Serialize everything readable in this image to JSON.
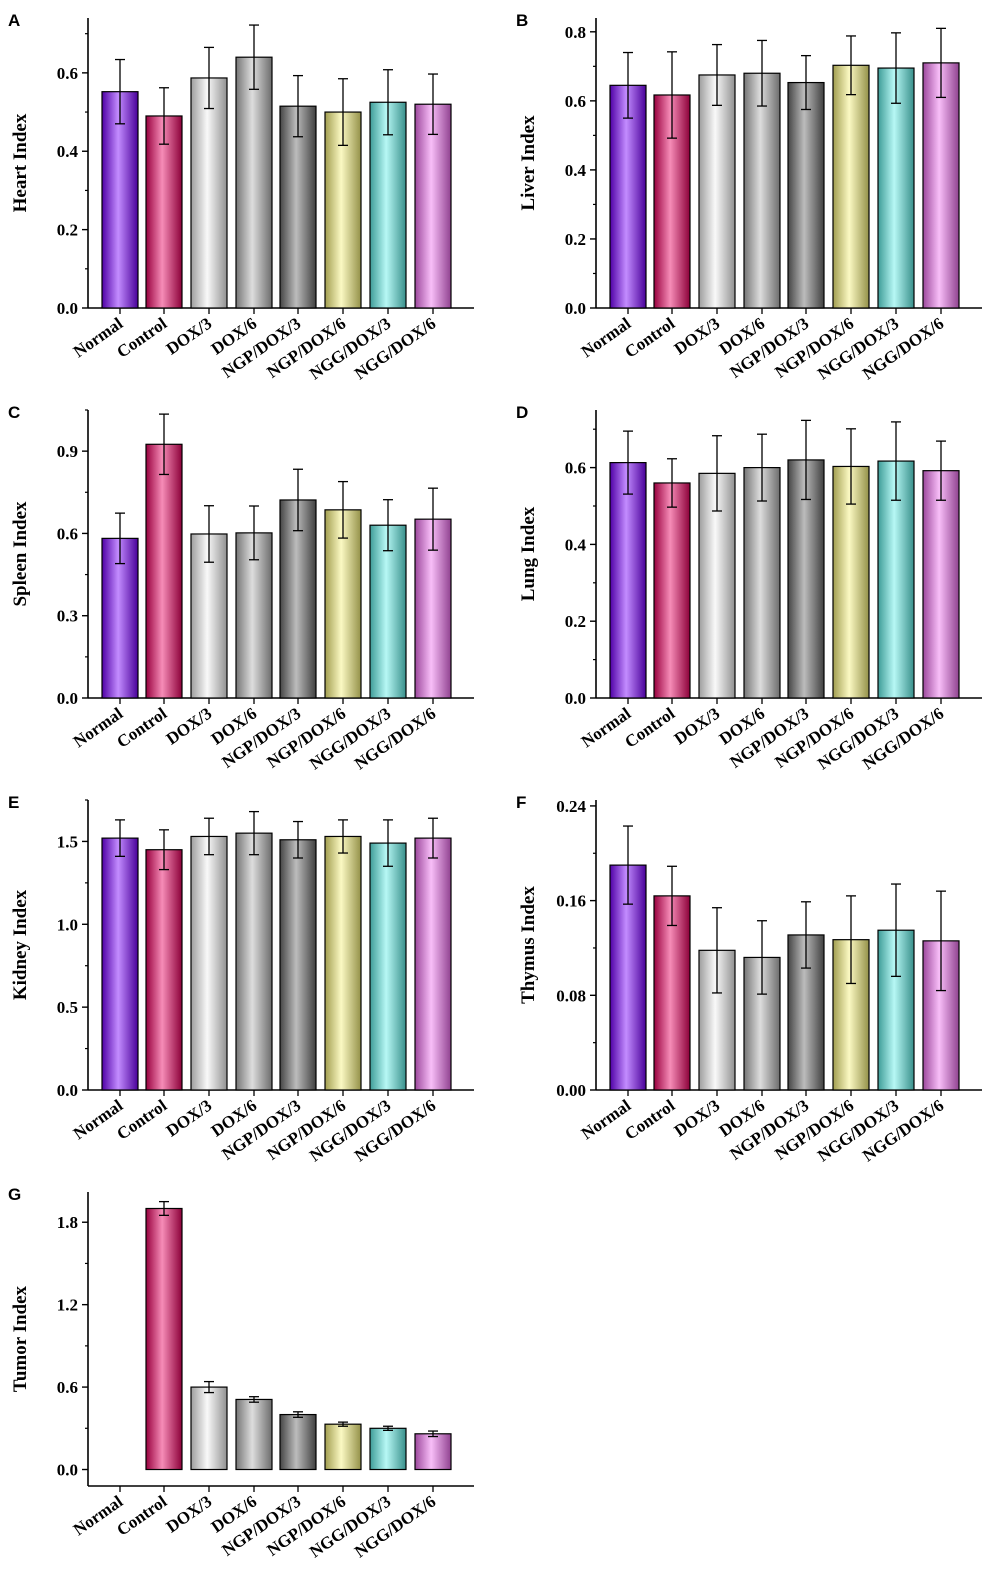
{
  "colors": {
    "Normal": "#7a00ff",
    "Control": "#ea005f",
    "DOX/3": "#f2f2f2",
    "DOX/6": "#b4b4b4",
    "NGP/DOX/3": "#6a6a6a",
    "NGP/DOX/6": "#f7f27a",
    "NGG/DOX/3": "#5ff0e8",
    "NGG/DOX/6": "#f06ef0"
  },
  "chart_data": [
    {
      "type": "bar",
      "panel": "A",
      "ylabel": "Heart Index",
      "categories": [
        "Normal",
        "Control",
        "DOX/3",
        "DOX/6",
        "NGP/DOX/3",
        "NGP/DOX/6",
        "NGG/DOX/3",
        "NGG/DOX/6"
      ],
      "values": [
        0.552,
        0.49,
        0.587,
        0.64,
        0.515,
        0.5,
        0.525,
        0.52
      ],
      "errors": [
        0.082,
        0.072,
        0.078,
        0.082,
        0.078,
        0.085,
        0.083,
        0.077
      ],
      "ylim": [
        0,
        0.74
      ],
      "yticks": [
        0.0,
        0.2,
        0.4,
        0.6
      ],
      "ytick_labels": [
        "0.0",
        "0.2",
        "0.4",
        "0.6"
      ]
    },
    {
      "type": "bar",
      "panel": "B",
      "ylabel": "Liver Index",
      "categories": [
        "Normal",
        "Control",
        "DOX/3",
        "DOX/6",
        "NGP/DOX/3",
        "NGP/DOX/6",
        "NGG/DOX/3",
        "NGG/DOX/6"
      ],
      "values": [
        0.645,
        0.617,
        0.675,
        0.68,
        0.653,
        0.703,
        0.695,
        0.71
      ],
      "errors": [
        0.095,
        0.125,
        0.088,
        0.095,
        0.078,
        0.085,
        0.102,
        0.1
      ],
      "ylim": [
        0,
        0.84
      ],
      "yticks": [
        0.0,
        0.2,
        0.4,
        0.6,
        0.8
      ],
      "ytick_labels": [
        "0.0",
        "0.2",
        "0.4",
        "0.6",
        "0.8"
      ]
    },
    {
      "type": "bar",
      "panel": "C",
      "ylabel": "Spleen Index",
      "categories": [
        "Normal",
        "Control",
        "DOX/3",
        "DOX/6",
        "NGP/DOX/3",
        "NGP/DOX/6",
        "NGG/DOX/3",
        "NGG/DOX/6"
      ],
      "values": [
        0.582,
        0.925,
        0.598,
        0.602,
        0.722,
        0.686,
        0.63,
        0.652
      ],
      "errors": [
        0.092,
        0.11,
        0.103,
        0.098,
        0.112,
        0.103,
        0.093,
        0.113
      ],
      "ylim": [
        0,
        1.05
      ],
      "yticks": [
        0.0,
        0.3,
        0.6,
        0.9
      ],
      "ytick_labels": [
        "0.0",
        "0.3",
        "0.6",
        "0.9"
      ]
    },
    {
      "type": "bar",
      "panel": "D",
      "ylabel": "Lung Index",
      "categories": [
        "Normal",
        "Control",
        "DOX/3",
        "DOX/6",
        "NGP/DOX/3",
        "NGP/DOX/6",
        "NGG/DOX/3",
        "NGG/DOX/6"
      ],
      "values": [
        0.613,
        0.56,
        0.585,
        0.6,
        0.62,
        0.603,
        0.617,
        0.592
      ],
      "errors": [
        0.082,
        0.063,
        0.098,
        0.087,
        0.103,
        0.098,
        0.102,
        0.077
      ],
      "ylim": [
        0,
        0.75
      ],
      "yticks": [
        0.0,
        0.2,
        0.4,
        0.6
      ],
      "ytick_labels": [
        "0.0",
        "0.2",
        "0.4",
        "0.6"
      ]
    },
    {
      "type": "bar",
      "panel": "E",
      "ylabel": "Kidney Index",
      "categories": [
        "Normal",
        "Control",
        "DOX/3",
        "DOX/6",
        "NGP/DOX/3",
        "NGP/DOX/6",
        "NGG/DOX/3",
        "NGG/DOX/6"
      ],
      "values": [
        1.52,
        1.45,
        1.53,
        1.55,
        1.51,
        1.53,
        1.49,
        1.52
      ],
      "errors": [
        0.11,
        0.12,
        0.11,
        0.13,
        0.11,
        0.1,
        0.14,
        0.12
      ],
      "ylim": [
        0,
        1.75
      ],
      "yticks": [
        0.0,
        0.5,
        1.0,
        1.5
      ],
      "ytick_labels": [
        "0.0",
        "0.5",
        "1.0",
        "1.5"
      ]
    },
    {
      "type": "bar",
      "panel": "F",
      "ylabel": "Thymus Index",
      "categories": [
        "Normal",
        "Control",
        "DOX/3",
        "DOX/6",
        "NGP/DOX/3",
        "NGP/DOX/6",
        "NGG/DOX/3",
        "NGG/DOX/6"
      ],
      "values": [
        0.19,
        0.164,
        0.118,
        0.112,
        0.131,
        0.127,
        0.135,
        0.126
      ],
      "errors": [
        0.033,
        0.025,
        0.036,
        0.031,
        0.028,
        0.037,
        0.039,
        0.042
      ],
      "ylim": [
        0,
        0.245
      ],
      "yticks": [
        0.0,
        0.08,
        0.16,
        0.24
      ],
      "ytick_labels": [
        "0.00",
        "0.08",
        "0.16",
        "0.24"
      ]
    },
    {
      "type": "bar",
      "panel": "G",
      "ylabel": "Tumor Index",
      "categories": [
        "Normal",
        "Control",
        "DOX/3",
        "DOX/6",
        "NGP/DOX/3",
        "NGP/DOX/6",
        "NGG/DOX/3",
        "NGG/DOX/6"
      ],
      "values": [
        0.0,
        1.9,
        0.6,
        0.51,
        0.4,
        0.33,
        0.3,
        0.26
      ],
      "errors": [
        0.0,
        0.05,
        0.04,
        0.02,
        0.02,
        0.015,
        0.015,
        0.02
      ],
      "ylim": [
        -0.12,
        2.02
      ],
      "yticks": [
        0.0,
        0.6,
        1.2,
        1.8
      ],
      "ytick_labels": [
        "0.0",
        "0.6",
        "1.2",
        "1.8"
      ]
    }
  ]
}
